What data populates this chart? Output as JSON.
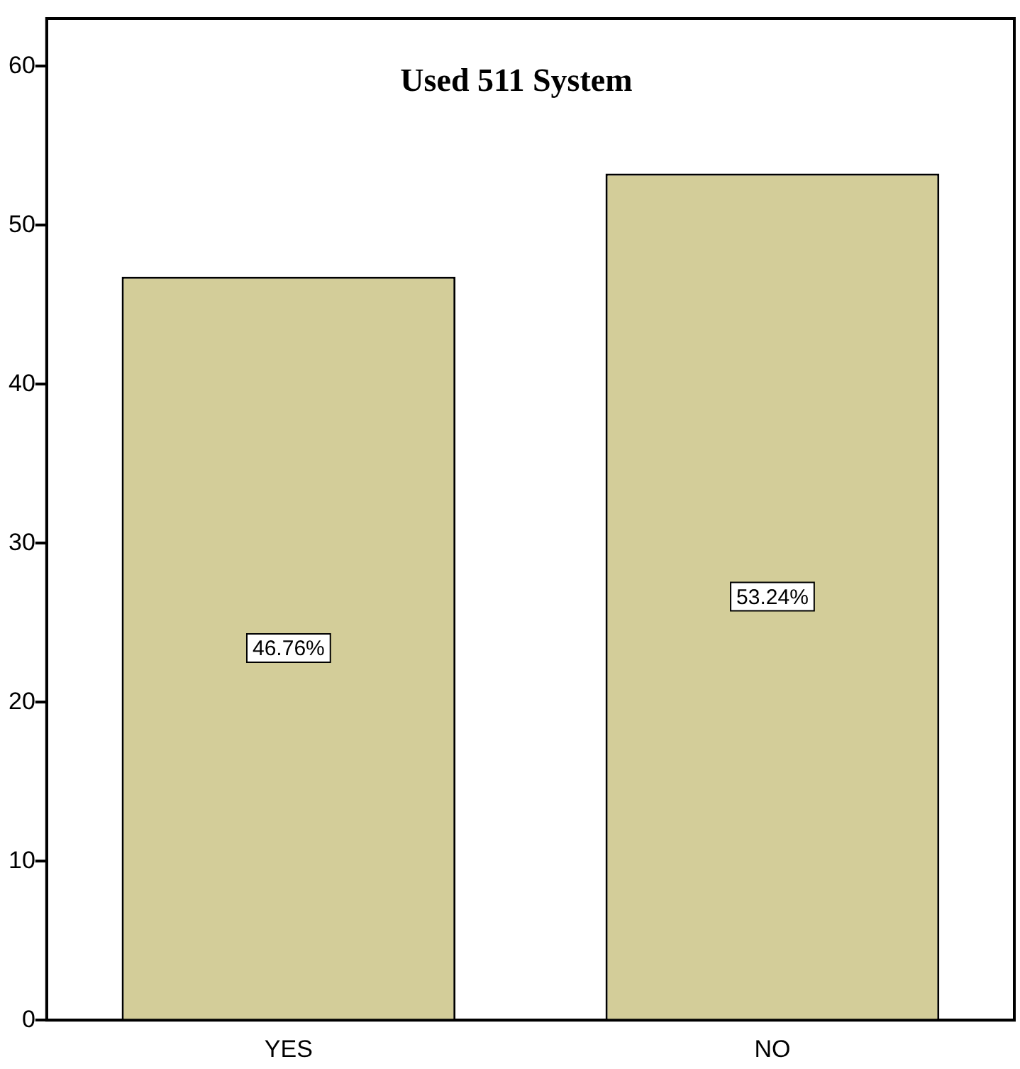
{
  "chart_data": {
    "type": "bar",
    "title": "Used 511 System",
    "categories": [
      "YES",
      "NO"
    ],
    "values": [
      46.76,
      53.24
    ],
    "color": "#d3cd99",
    "value_labels": [
      "46.76%",
      "53.24%"
    ],
    "ylim": [
      0,
      63
    ],
    "yticks": [
      0,
      10,
      20,
      30,
      40,
      50,
      60
    ],
    "grid": false,
    "legend": false
  }
}
